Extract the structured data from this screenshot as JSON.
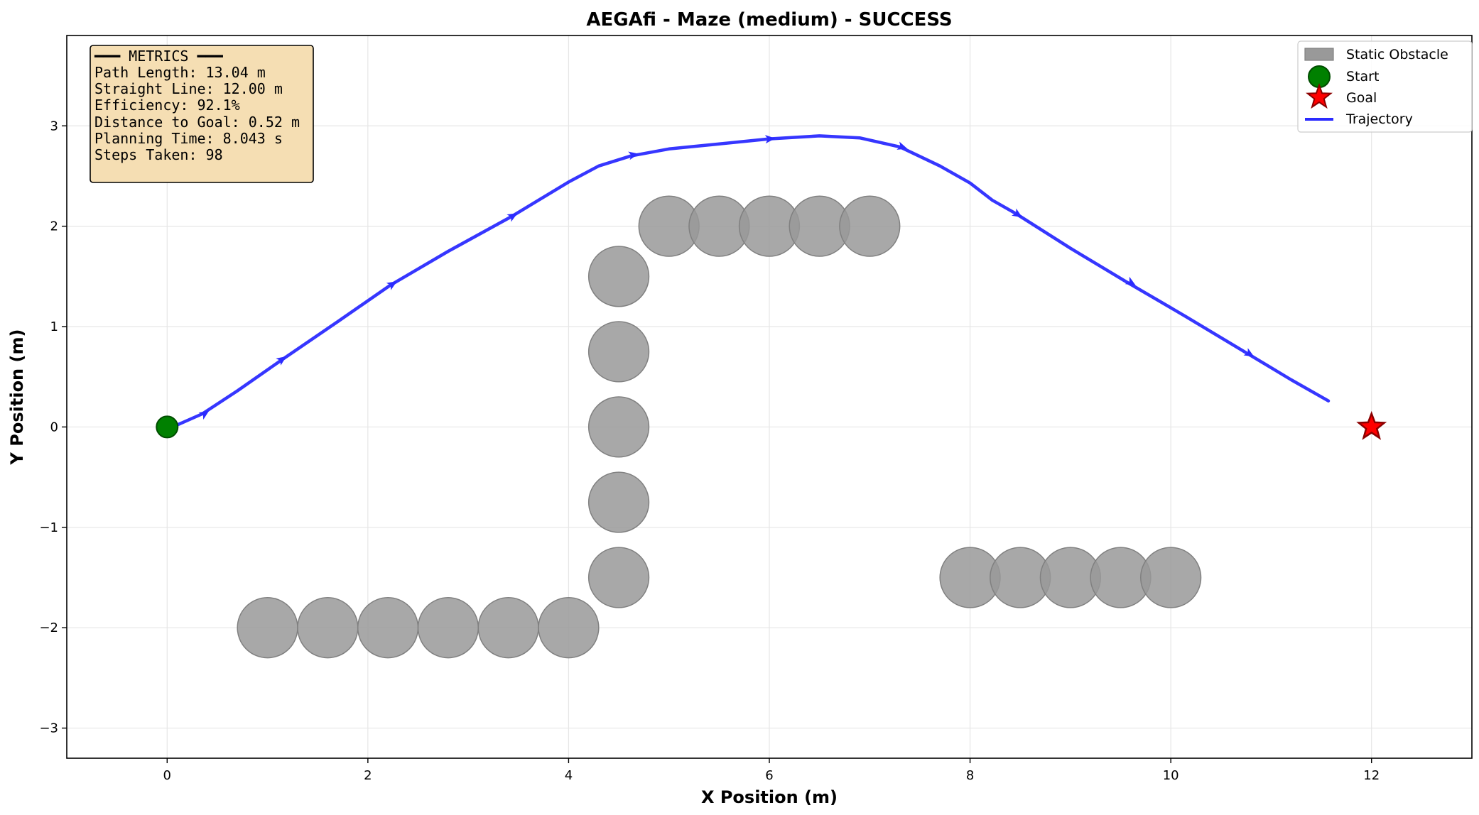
{
  "chart_data": {
    "type": "scatter",
    "title": "AEGAfi - Maze (medium) - SUCCESS",
    "xlabel": "X Position (m)",
    "ylabel": "Y Position (m)",
    "xlim": [
      -1,
      13
    ],
    "ylim": [
      -3.3,
      3.9
    ],
    "xticks": [
      0,
      2,
      4,
      6,
      8,
      10,
      12
    ],
    "yticks": [
      -3,
      -2,
      -1,
      0,
      1,
      2,
      3
    ],
    "grid": true,
    "legend_position": "top-right",
    "legend": [
      "Static Obstacle",
      "Start",
      "Goal",
      "Trajectory"
    ],
    "obstacle_radius": 0.3,
    "obstacles": [
      {
        "x": 1.0,
        "y": -2.0
      },
      {
        "x": 1.6,
        "y": -2.0
      },
      {
        "x": 2.2,
        "y": -2.0
      },
      {
        "x": 2.8,
        "y": -2.0
      },
      {
        "x": 3.4,
        "y": -2.0
      },
      {
        "x": 4.0,
        "y": -2.0
      },
      {
        "x": 4.5,
        "y": -1.5
      },
      {
        "x": 4.5,
        "y": -0.75
      },
      {
        "x": 4.5,
        "y": 0.0
      },
      {
        "x": 4.5,
        "y": 0.75
      },
      {
        "x": 4.5,
        "y": 1.5
      },
      {
        "x": 5.0,
        "y": 2.0
      },
      {
        "x": 5.5,
        "y": 2.0
      },
      {
        "x": 6.0,
        "y": 2.0
      },
      {
        "x": 6.5,
        "y": 2.0
      },
      {
        "x": 7.0,
        "y": 2.0
      },
      {
        "x": 8.0,
        "y": -1.5
      },
      {
        "x": 8.5,
        "y": -1.5
      },
      {
        "x": 9.0,
        "y": -1.5
      },
      {
        "x": 9.5,
        "y": -1.5
      },
      {
        "x": 10.0,
        "y": -1.5
      }
    ],
    "start": {
      "x": 0,
      "y": 0
    },
    "goal": {
      "x": 12,
      "y": 0
    },
    "trajectory": [
      {
        "x": 0.1,
        "y": 0.02
      },
      {
        "x": 0.35,
        "y": 0.13
      },
      {
        "x": 0.7,
        "y": 0.36
      },
      {
        "x": 1.13,
        "y": 0.66
      },
      {
        "x": 1.7,
        "y": 1.05
      },
      {
        "x": 2.22,
        "y": 1.41
      },
      {
        "x": 2.8,
        "y": 1.75
      },
      {
        "x": 3.42,
        "y": 2.09
      },
      {
        "x": 4.0,
        "y": 2.44
      },
      {
        "x": 4.3,
        "y": 2.6
      },
      {
        "x": 4.62,
        "y": 2.7
      },
      {
        "x": 5.0,
        "y": 2.77
      },
      {
        "x": 5.5,
        "y": 2.82
      },
      {
        "x": 6.0,
        "y": 2.87
      },
      {
        "x": 6.5,
        "y": 2.9
      },
      {
        "x": 6.9,
        "y": 2.88
      },
      {
        "x": 7.3,
        "y": 2.79
      },
      {
        "x": 7.7,
        "y": 2.6
      },
      {
        "x": 8.0,
        "y": 2.43
      },
      {
        "x": 8.22,
        "y": 2.26
      },
      {
        "x": 8.45,
        "y": 2.13
      },
      {
        "x": 9.0,
        "y": 1.78
      },
      {
        "x": 9.55,
        "y": 1.45
      },
      {
        "x": 10.15,
        "y": 1.1
      },
      {
        "x": 10.75,
        "y": 0.74
      },
      {
        "x": 11.2,
        "y": 0.47
      },
      {
        "x": 11.57,
        "y": 0.26
      }
    ],
    "arrows": [
      {
        "x": 0.37,
        "y": 0.13,
        "dx": 0.06,
        "dy": 0.04
      },
      {
        "x": 1.14,
        "y": 0.67,
        "dx": 0.06,
        "dy": 0.042
      },
      {
        "x": 2.24,
        "y": 1.42,
        "dx": 0.06,
        "dy": 0.038
      },
      {
        "x": 3.44,
        "y": 2.1,
        "dx": 0.06,
        "dy": 0.035
      },
      {
        "x": 4.64,
        "y": 2.71,
        "dx": 0.06,
        "dy": 0.012
      },
      {
        "x": 6.0,
        "y": 2.87,
        "dx": 0.06,
        "dy": 0.005
      },
      {
        "x": 7.32,
        "y": 2.79,
        "dx": 0.06,
        "dy": -0.02
      },
      {
        "x": 8.47,
        "y": 2.12,
        "dx": 0.06,
        "dy": -0.038
      },
      {
        "x": 9.6,
        "y": 1.44,
        "dx": 0.06,
        "dy": -0.036
      },
      {
        "x": 10.78,
        "y": 0.73,
        "dx": 0.06,
        "dy": -0.036
      }
    ],
    "metrics": [
      "━━━ METRICS ━━━",
      "Path Length:    13.04 m",
      "Straight Line:  12.00 m",
      "Efficiency:     92.1%",
      "Distance to Goal: 0.52 m",
      "Planning Time:  8.043 s",
      "Steps Taken:    98"
    ]
  },
  "colors": {
    "obstacle_fill": "#999999",
    "obstacle_edge": "#808080",
    "start_fill": "#008000",
    "start_edge": "#004d00",
    "goal_fill": "#ff0000",
    "goal_edge": "#8b0000",
    "trajectory": "#2b2bff",
    "metrics_bg": "#f5deb3",
    "grid": "#e6e6e6"
  }
}
